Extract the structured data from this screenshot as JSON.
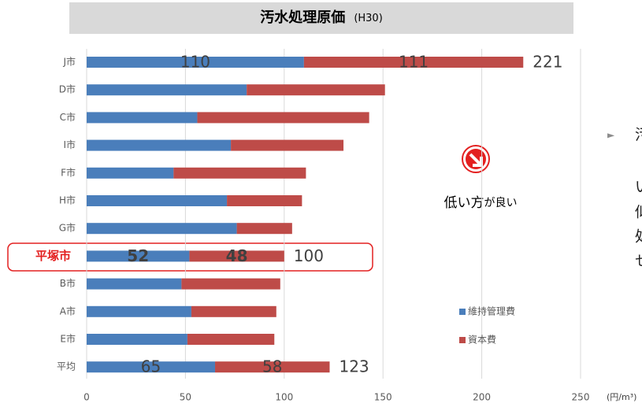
{
  "chart_data": {
    "type": "stacked-barh",
    "title": "汚水処理原価",
    "title_note": "(H30)",
    "x_unit": "(円/m³)",
    "categories": [
      "J市",
      "D市",
      "C市",
      "I市",
      "F市",
      "H市",
      "G市",
      "平塚市",
      "B市",
      "A市",
      "E市",
      "平均"
    ],
    "highlight_index": 7,
    "series": [
      {
        "name": "維持管理費",
        "color": "#4a7ebb",
        "values": [
          110,
          81,
          56,
          73,
          44,
          71,
          76,
          52,
          48,
          53,
          51,
          65
        ],
        "value_labels": [
          "110",
          null,
          null,
          null,
          null,
          null,
          null,
          "52",
          null,
          null,
          null,
          "65"
        ]
      },
      {
        "name": "資本費",
        "color": "#be4b48",
        "values": [
          111,
          70,
          87,
          57,
          67,
          38,
          28,
          48,
          50,
          43,
          44,
          58
        ],
        "value_labels": [
          "111",
          null,
          null,
          null,
          null,
          null,
          null,
          "48",
          null,
          null,
          null,
          "58"
        ]
      }
    ],
    "total_labels": [
      "221",
      null,
      null,
      null,
      null,
      null,
      null,
      "100",
      null,
      null,
      null,
      "123"
    ],
    "xlim": [
      0,
      250
    ],
    "xticks": [
      0,
      50,
      100,
      150,
      200,
      250
    ],
    "grid": true,
    "annotation": [
      "低い方",
      "が良い"
    ],
    "side_text": [
      "►",
      "汚",
      "い",
      "似",
      "処",
      "せ"
    ]
  }
}
